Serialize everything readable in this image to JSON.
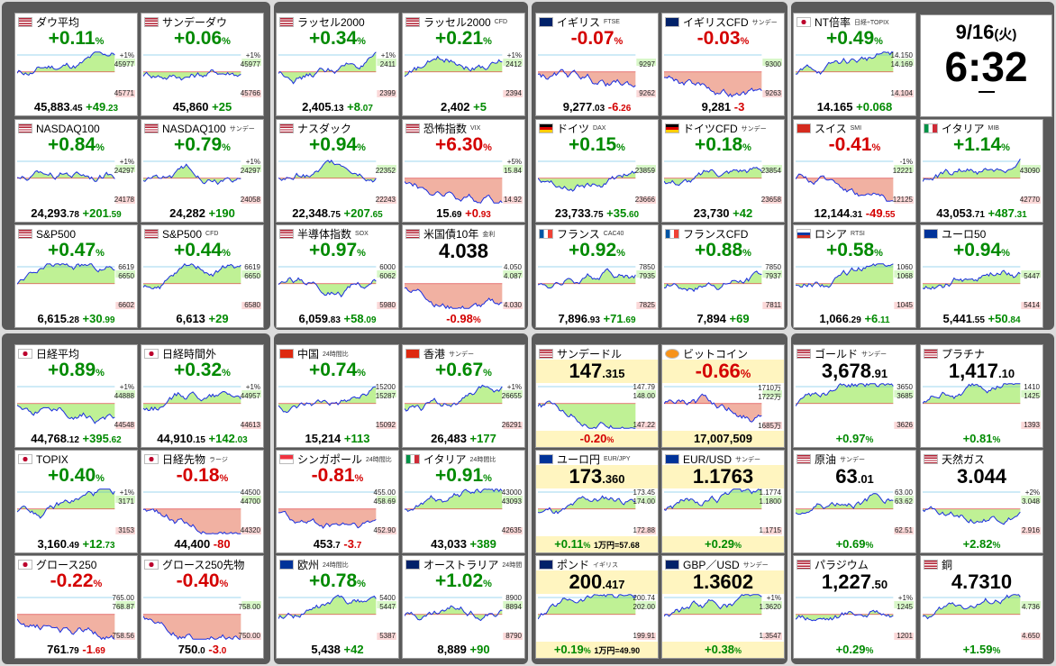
{
  "clock": {
    "date": "9/16",
    "dow": "(火)",
    "time": "6:32"
  },
  "colors": {
    "up": "#008a00",
    "down": "#d40000",
    "area_up": "#b8f08a",
    "area_down": "#f0a898",
    "fx_bg": "#fff5c0"
  },
  "markets": [
    {
      "id": "dow",
      "flag": "US",
      "name": "ダウ平均",
      "sub": "",
      "sign": "up",
      "chg": "+0.11",
      "unit": "%",
      "price_main": "45,883",
      "price_dec": ".45",
      "delta_main": "+49",
      "delta_dec": ".23",
      "y_hi": "45977",
      "y_lo": "45771",
      "y_mark": "+1%"
    },
    {
      "id": "dow-sun",
      "flag": "US",
      "name": "サンデーダウ",
      "sub": "",
      "sign": "up",
      "chg": "+0.06",
      "unit": "%",
      "price_main": "45,860",
      "price_dec": "",
      "delta_main": "+25",
      "delta_dec": "",
      "y_hi": "45977",
      "y_lo": "45766",
      "y_mark": "+1%"
    },
    {
      "id": "russell",
      "flag": "US",
      "name": "ラッセル2000",
      "sub": "",
      "sign": "up",
      "chg": "+0.34",
      "unit": "%",
      "price_main": "2,405",
      "price_dec": ".13",
      "delta_main": "+8",
      "delta_dec": ".07",
      "y_hi": "2411",
      "y_lo": "2399",
      "y_mark": "+1%"
    },
    {
      "id": "russell-cfd",
      "flag": "US",
      "name": "ラッセル2000",
      "sub": "CFD",
      "sign": "up",
      "chg": "+0.21",
      "unit": "%",
      "price_main": "2,402",
      "price_dec": "",
      "delta_main": "+5",
      "delta_dec": "",
      "y_hi": "2412",
      "y_lo": "2394",
      "y_mark": "+1%"
    },
    {
      "id": "ftse",
      "flag": "UK",
      "name": "イギリス",
      "sub": "FTSE",
      "sign": "dn",
      "chg": "-0.07",
      "unit": "%",
      "price_main": "9,277",
      "price_dec": ".03",
      "delta_main": "-6",
      "delta_dec": ".26",
      "y_hi": "9297",
      "y_lo": "9262",
      "y_mark": ""
    },
    {
      "id": "ftse-cfd",
      "flag": "UK",
      "name": "イギリスCFD",
      "sub": "サンデー",
      "sign": "dn",
      "chg": "-0.03",
      "unit": "%",
      "price_main": "9,281",
      "price_dec": "",
      "delta_main": "-3",
      "delta_dec": "",
      "y_hi": "9300",
      "y_lo": "9263",
      "y_mark": ""
    },
    {
      "id": "nt",
      "flag": "JP",
      "name": "NT倍率",
      "sub": "日経÷TOPIX",
      "sign": "up",
      "chg": "+0.49",
      "unit": "%",
      "price_main": "14.165",
      "price_dec": "",
      "delta_main": "+0.068",
      "delta_dec": "",
      "y_hi": "14.169",
      "y_lo": "14.104",
      "y_mark": "14.150"
    },
    {
      "id": "nasdaq100",
      "flag": "US",
      "name": "NASDAQ100",
      "sub": "",
      "sign": "up",
      "chg": "+0.84",
      "unit": "%",
      "price_main": "24,293",
      "price_dec": ".78",
      "delta_main": "+201",
      "delta_dec": ".59",
      "y_hi": "24297",
      "y_lo": "24178",
      "y_mark": "+1%"
    },
    {
      "id": "nasdaq100-sun",
      "flag": "US",
      "name": "NASDAQ100",
      "sub": "サンデー",
      "sign": "up",
      "chg": "+0.79",
      "unit": "%",
      "price_main": "24,282",
      "price_dec": "",
      "delta_main": "+190",
      "delta_dec": "",
      "y_hi": "24297",
      "y_lo": "24058",
      "y_mark": "+1%"
    },
    {
      "id": "nasdaq",
      "flag": "US",
      "name": "ナスダック",
      "sub": "",
      "sign": "up",
      "chg": "+0.94",
      "unit": "%",
      "price_main": "22,348",
      "price_dec": ".75",
      "delta_main": "+207",
      "delta_dec": ".65",
      "y_hi": "22352",
      "y_lo": "22243",
      "y_mark": ""
    },
    {
      "id": "vix",
      "flag": "US",
      "name": "恐怖指数",
      "sub": "VIX",
      "sign": "dn",
      "chg": "+6.30",
      "unit": "%",
      "price_main": "15",
      "price_dec": ".69",
      "delta_main": "+0",
      "delta_dec": ".93",
      "y_hi": "15.84",
      "y_lo": "14.92",
      "y_mark": "+5%"
    },
    {
      "id": "dax",
      "flag": "DE",
      "name": "ドイツ",
      "sub": "DAX",
      "sign": "up",
      "chg": "+0.15",
      "unit": "%",
      "price_main": "23,733",
      "price_dec": ".75",
      "delta_main": "+35",
      "delta_dec": ".60",
      "y_hi": "23859",
      "y_lo": "23666",
      "y_mark": ""
    },
    {
      "id": "dax-cfd",
      "flag": "DE",
      "name": "ドイツCFD",
      "sub": "サンデー",
      "sign": "up",
      "chg": "+0.18",
      "unit": "%",
      "price_main": "23,730",
      "price_dec": "",
      "delta_main": "+42",
      "delta_dec": "",
      "y_hi": "23854",
      "y_lo": "23658",
      "y_mark": ""
    },
    {
      "id": "smi",
      "flag": "CH",
      "name": "スイス",
      "sub": "SMI",
      "sign": "dn",
      "chg": "-0.41",
      "unit": "%",
      "price_main": "12,144",
      "price_dec": ".31",
      "delta_main": "-49",
      "delta_dec": ".55",
      "y_hi": "12221",
      "y_lo": "12125",
      "y_mark": "-1%"
    },
    {
      "id": "mib",
      "flag": "IT",
      "name": "イタリア",
      "sub": "MIB",
      "sign": "up",
      "chg": "+1.14",
      "unit": "%",
      "price_main": "43,053",
      "price_dec": ".71",
      "delta_main": "+487",
      "delta_dec": ".31",
      "y_hi": "43090",
      "y_lo": "42770",
      "y_mark": ""
    },
    {
      "id": "sp500",
      "flag": "US",
      "name": "S&P500",
      "sub": "",
      "sign": "up",
      "chg": "+0.47",
      "unit": "%",
      "price_main": "6,615",
      "price_dec": ".28",
      "delta_main": "+30",
      "delta_dec": ".99",
      "y_hi": "6650",
      "y_lo": "6602",
      "y_mark": "6619"
    },
    {
      "id": "sp500-cfd",
      "flag": "US",
      "name": "S&P500",
      "sub": "CFD",
      "sign": "up",
      "chg": "+0.44",
      "unit": "%",
      "price_main": "6,613",
      "price_dec": "",
      "delta_main": "+29",
      "delta_dec": "",
      "y_hi": "6650",
      "y_lo": "6580",
      "y_mark": "6619"
    },
    {
      "id": "sox",
      "flag": "US",
      "name": "半導体指数",
      "sub": "SOX",
      "sign": "up",
      "chg": "+0.97",
      "unit": "%",
      "price_main": "6,059",
      "price_dec": ".83",
      "delta_main": "+58",
      "delta_dec": ".09",
      "y_hi": "6062",
      "y_lo": "5980",
      "y_mark": "6000"
    },
    {
      "id": "us10y",
      "flag": "US",
      "name": "米国債10年",
      "sub": "金利",
      "sign": "dn",
      "chg": "",
      "unit": "",
      "price_main": "4.038",
      "price_dec": "",
      "delta_main": "-0.98",
      "delta_dec": "%",
      "y_hi": "4.087",
      "y_lo": "4.030",
      "y_mark": "4.050"
    },
    {
      "id": "cac40",
      "flag": "FR",
      "name": "フランス",
      "sub": "CAC40",
      "sign": "up",
      "chg": "+0.92",
      "unit": "%",
      "price_main": "7,896",
      "price_dec": ".93",
      "delta_main": "+71",
      "delta_dec": ".69",
      "y_hi": "7935",
      "y_lo": "7825",
      "y_mark": "7850"
    },
    {
      "id": "cac-cfd",
      "flag": "FR",
      "name": "フランスCFD",
      "sub": "",
      "sign": "up",
      "chg": "+0.88",
      "unit": "%",
      "price_main": "7,894",
      "price_dec": "",
      "delta_main": "+69",
      "delta_dec": "",
      "y_hi": "7937",
      "y_lo": "7811",
      "y_mark": "7850"
    },
    {
      "id": "rtsi",
      "flag": "RU",
      "name": "ロシア",
      "sub": "RTSI",
      "sign": "up",
      "chg": "+0.58",
      "unit": "%",
      "price_main": "1,066",
      "price_dec": ".29",
      "delta_main": "+6",
      "delta_dec": ".11",
      "y_hi": "1068",
      "y_lo": "1045",
      "y_mark": "1060"
    },
    {
      "id": "euro50",
      "flag": "EU",
      "name": "ユーロ50",
      "sub": "",
      "sign": "up",
      "chg": "+0.94",
      "unit": "%",
      "price_main": "5,441",
      "price_dec": ".55",
      "delta_main": "+50",
      "delta_dec": ".84",
      "y_hi": "5447",
      "y_lo": "5414",
      "y_mark": ""
    },
    {
      "id": "nikkei",
      "flag": "JP",
      "name": "日経平均",
      "sub": "",
      "sign": "up",
      "chg": "+0.89",
      "unit": "%",
      "price_main": "44,768",
      "price_dec": ".12",
      "delta_main": "+395",
      "delta_dec": ".62",
      "y_hi": "44888",
      "y_lo": "44548",
      "y_mark": "+1%"
    },
    {
      "id": "nikkei-night",
      "flag": "JP",
      "name": "日経時間外",
      "sub": "",
      "sign": "up",
      "chg": "+0.32",
      "unit": "%",
      "price_main": "44,910",
      "price_dec": ".15",
      "delta_main": "+142",
      "delta_dec": ".03",
      "y_hi": "44957",
      "y_lo": "44613",
      "y_mark": "+1%"
    },
    {
      "id": "china",
      "flag": "CN",
      "name": "中国",
      "sub": "24時間比",
      "sign": "up",
      "chg": "+0.74",
      "unit": "%",
      "price_main": "15,214",
      "price_dec": "",
      "delta_main": "+113",
      "delta_dec": "",
      "y_hi": "15287",
      "y_lo": "15092",
      "y_mark": "15200"
    },
    {
      "id": "hk",
      "flag": "HK",
      "name": "香港",
      "sub": "サンデー",
      "sign": "up",
      "chg": "+0.67",
      "unit": "%",
      "price_main": "26,483",
      "price_dec": "",
      "delta_main": "+177",
      "delta_dec": "",
      "y_hi": "26655",
      "y_lo": "26291",
      "y_mark": "+1%"
    },
    {
      "id": "usdjpy",
      "flag": "US",
      "name": "サンデードル",
      "sub": "",
      "sign": "fx",
      "big_main": "147",
      "big_dec": ".315",
      "foot": "-0.20",
      "foot_unit": "%",
      "foot_sign": "dn",
      "foot_extra": "",
      "y_hi": "148.00",
      "y_lo": "147.22",
      "y_mark": "147.79"
    },
    {
      "id": "btc",
      "flag": "BTC",
      "name": "ビットコイン",
      "sub": "",
      "sign": "fx",
      "big_main": "-0.66",
      "big_dec": "%",
      "big_sign": "dn",
      "foot": "17,007,509",
      "foot_unit": "",
      "foot_sign": "none",
      "foot_extra": "",
      "y_hi": "1722万",
      "y_lo": "1685万",
      "y_mark": "1710万"
    },
    {
      "id": "gold",
      "flag": "US",
      "name": "ゴールド",
      "sub": "サンデー",
      "sign": "up",
      "chg": "",
      "unit": "",
      "big_main": "3,678",
      "big_dec": ".91",
      "price_main": "+0.97",
      "price_dec": "%",
      "y_hi": "3685",
      "y_lo": "3626",
      "y_mark": "3650"
    },
    {
      "id": "platinum",
      "flag": "US",
      "name": "プラチナ",
      "sub": "",
      "sign": "up",
      "chg": "",
      "unit": "",
      "big_main": "1,417",
      "big_dec": ".10",
      "price_main": "+0.81",
      "price_dec": "%",
      "y_hi": "1425",
      "y_lo": "1393",
      "y_mark": "1410"
    },
    {
      "id": "topix",
      "flag": "JP",
      "name": "TOPIX",
      "sub": "",
      "sign": "up",
      "chg": "+0.40",
      "unit": "%",
      "price_main": "3,160",
      "price_dec": ".49",
      "delta_main": "+12",
      "delta_dec": ".73",
      "y_hi": "3171",
      "y_lo": "3153",
      "y_mark": "+1%"
    },
    {
      "id": "nikkei-fut",
      "flag": "JP",
      "name": "日経先物",
      "sub": "ラージ",
      "sign": "dn",
      "chg": "-0.18",
      "unit": "%",
      "price_main": "44,400",
      "price_dec": "",
      "delta_main": "-80",
      "delta_dec": "",
      "y_hi": "44700",
      "y_lo": "44320",
      "y_mark": "44500"
    },
    {
      "id": "sg",
      "flag": "SG",
      "name": "シンガポール",
      "sub": "24時間比",
      "sign": "dn",
      "chg": "-0.81",
      "unit": "%",
      "price_main": "453",
      "price_dec": ".7",
      "delta_main": "-3",
      "delta_dec": ".7",
      "y_hi": "458.69",
      "y_lo": "452.90",
      "y_mark": "455.00"
    },
    {
      "id": "it24",
      "flag": "IT",
      "name": "イタリア",
      "sub": "24時間比",
      "sign": "up",
      "chg": "+0.91",
      "unit": "%",
      "price_main": "43,033",
      "price_dec": "",
      "delta_main": "+389",
      "delta_dec": "",
      "y_hi": "43093",
      "y_lo": "42635",
      "y_mark": "43000"
    },
    {
      "id": "eurjpy",
      "flag": "EU",
      "name": "ユーロ円",
      "sub": "EUR/JPY",
      "sign": "fx",
      "big_main": "173",
      "big_dec": ".360",
      "foot": "+0.11",
      "foot_unit": "%",
      "foot_sign": "up",
      "foot_extra": "1万円=57.68",
      "y_hi": "174.00",
      "y_lo": "172.88",
      "y_mark": "173.45"
    },
    {
      "id": "eurusd",
      "flag": "EU",
      "name": "EUR/USD",
      "sub": "サンデー",
      "sign": "fx",
      "big_main": "1.1763",
      "big_dec": "",
      "foot": "+0.29",
      "foot_unit": "%",
      "foot_sign": "up",
      "foot_extra": "",
      "y_hi": "1.1800",
      "y_lo": "1.1715",
      "y_mark": "1.1774"
    },
    {
      "id": "crude",
      "flag": "US",
      "name": "原油",
      "sub": "サンデー",
      "sign": "up",
      "chg": "",
      "unit": "",
      "big_main": "63",
      "big_dec": ".01",
      "price_main": "+0.69",
      "price_dec": "%",
      "y_hi": "63.62",
      "y_lo": "62.51",
      "y_mark": "63.00"
    },
    {
      "id": "natgas",
      "flag": "US",
      "name": "天然ガス",
      "sub": "",
      "sign": "up",
      "chg": "",
      "unit": "",
      "big_main": "3.044",
      "big_dec": "",
      "price_main": "+2.82",
      "price_dec": "%",
      "y_hi": "3.048",
      "y_lo": "2.916",
      "y_mark": "+2%"
    },
    {
      "id": "growth250",
      "flag": "JP",
      "name": "グロース250",
      "sub": "",
      "sign": "dn",
      "chg": "-0.22",
      "unit": "%",
      "price_main": "761",
      "price_dec": ".79",
      "delta_main": "-1",
      "delta_dec": ".69",
      "y_hi": "768.87",
      "y_lo": "758.56",
      "y_mark": "765.00"
    },
    {
      "id": "growth250-fut",
      "flag": "JP",
      "name": "グロース250先物",
      "sub": "",
      "sign": "dn",
      "chg": "-0.40",
      "unit": "%",
      "price_main": "750",
      "price_dec": ".0",
      "delta_main": "-3",
      "delta_dec": ".0",
      "y_hi": "758.00",
      "y_lo": "750.00",
      "y_mark": ""
    },
    {
      "id": "europe",
      "flag": "EU",
      "name": "欧州",
      "sub": "24時間比",
      "sign": "up",
      "chg": "+0.78",
      "unit": "%",
      "price_main": "5,438",
      "price_dec": "",
      "delta_main": "+42",
      "delta_dec": "",
      "y_hi": "5447",
      "y_lo": "5387",
      "y_mark": "5400"
    },
    {
      "id": "aus",
      "flag": "AU",
      "name": "オーストラリア",
      "sub": "24時間比",
      "sign": "up",
      "chg": "+1.02",
      "unit": "%",
      "price_main": "8,889",
      "price_dec": "",
      "delta_main": "+90",
      "delta_dec": "",
      "y_hi": "8894",
      "y_lo": "8790",
      "y_mark": "8900"
    },
    {
      "id": "gbpjpy",
      "flag": "UK",
      "name": "ポンド",
      "sub": "イギリス",
      "sign": "fx",
      "big_main": "200",
      "big_dec": ".417",
      "foot": "+0.19",
      "foot_unit": "%",
      "foot_sign": "up",
      "foot_extra": "1万円=49.90",
      "y_hi": "202.00",
      "y_lo": "199.91",
      "y_mark": "200.74"
    },
    {
      "id": "gbpusd",
      "flag": "UK",
      "name": "GBP／USD",
      "sub": "サンデー",
      "sign": "fx",
      "big_main": "1.3602",
      "big_dec": "",
      "foot": "+0.38",
      "foot_unit": "%",
      "foot_sign": "up",
      "foot_extra": "",
      "y_hi": "1.3620",
      "y_lo": "1.3547",
      "y_mark": "+1%"
    },
    {
      "id": "palladium",
      "flag": "US",
      "name": "パラジウム",
      "sub": "",
      "sign": "up",
      "chg": "",
      "unit": "",
      "big_main": "1,227",
      "big_dec": ".50",
      "price_main": "+0.29",
      "price_dec": "%",
      "y_hi": "1245",
      "y_lo": "1201",
      "y_mark": "+1%"
    },
    {
      "id": "copper",
      "flag": "US",
      "name": "銅",
      "sub": "",
      "sign": "up",
      "chg": "",
      "unit": "",
      "big_main": "4.7310",
      "big_dec": "",
      "price_main": "+1.59",
      "price_dec": "%",
      "y_hi": "4.736",
      "y_lo": "4.650",
      "y_mark": ""
    }
  ]
}
